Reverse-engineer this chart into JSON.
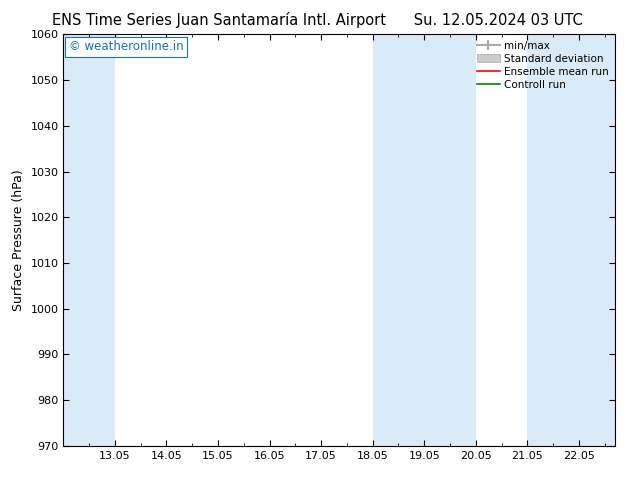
{
  "title_left": "ENS Time Series Juan Santamaría Intl. Airport",
  "title_right": "Su. 12.05.2024 03 UTC",
  "ylabel": "Surface Pressure (hPa)",
  "ylim": [
    970,
    1060
  ],
  "yticks": [
    970,
    980,
    990,
    1000,
    1010,
    1020,
    1030,
    1040,
    1050,
    1060
  ],
  "xtick_labels": [
    "13.05",
    "14.05",
    "15.05",
    "16.05",
    "17.05",
    "18.05",
    "19.05",
    "20.05",
    "21.05",
    "22.05"
  ],
  "shaded_color": "#daeaf7",
  "background_color": "#ffffff",
  "watermark_text": "© weatheronline.in",
  "watermark_color": "#1a6fb5",
  "title_fontsize": 10.5,
  "axis_label_fontsize": 9,
  "tick_fontsize": 8,
  "watermark_fontsize": 8.5
}
